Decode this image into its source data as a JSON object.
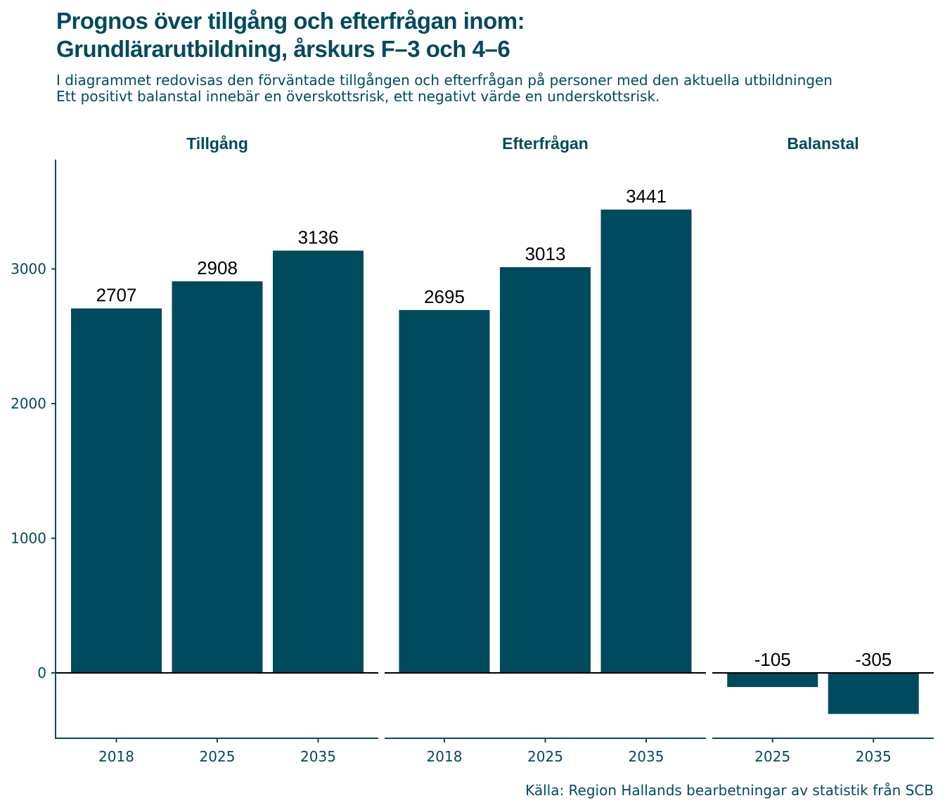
{
  "title": {
    "line1": "Prognos över tillgång och efterfrågan inom:",
    "line2": "Grundlärarutbildning, årskurs F–3 och 4–6"
  },
  "subtitle": {
    "line1": "I diagrammet redovisas den förväntade tillgången och efterfrågan på personer med den aktuella utbildningen",
    "line2": "Ett positivt balanstal innebär en överskottsrisk, ett negativt värde en underskottsrisk."
  },
  "caption": "Källa: Region Hallands bearbetningar av statistik från SCB",
  "colors": {
    "bar": "#004a5e",
    "text": "#004a5e",
    "label": "#000000"
  },
  "chart_data": {
    "type": "bar",
    "ylim": [
      -480,
      3800
    ],
    "yticks": [
      0,
      1000,
      2000,
      3000
    ],
    "ytick_labels": [
      "0",
      "1000",
      "2000",
      "3000"
    ],
    "grid": false,
    "facets": [
      {
        "title": "Tillgång",
        "categories": [
          "2018",
          "2025",
          "2035"
        ],
        "values": [
          2707,
          2908,
          3136
        ],
        "labels": [
          "2707",
          "2908",
          "3136"
        ]
      },
      {
        "title": "Efterfrågan",
        "categories": [
          "2018",
          "2025",
          "2035"
        ],
        "values": [
          2695,
          3013,
          3441
        ],
        "labels": [
          "2695",
          "3013",
          "3441"
        ]
      },
      {
        "title": "Balanstal",
        "categories": [
          "2025",
          "2035"
        ],
        "values": [
          -105,
          -305
        ],
        "labels": [
          "-105",
          "-305"
        ]
      }
    ]
  }
}
